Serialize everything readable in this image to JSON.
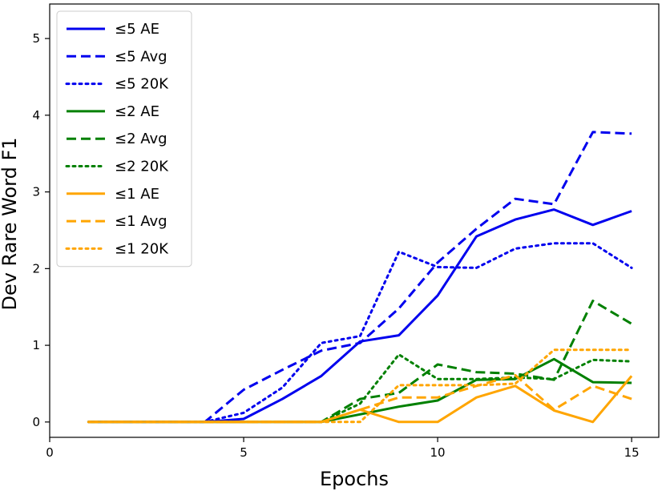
{
  "chart_data": {
    "type": "line",
    "title": "",
    "xlabel": "Epochs",
    "ylabel": "Dev Rare Word F1",
    "xlim": [
      0,
      15.7
    ],
    "ylim": [
      -0.2,
      5.45
    ],
    "xticks": [
      "0",
      "5",
      "10",
      "15"
    ],
    "xtick_values": [
      0,
      5,
      10,
      15
    ],
    "yticks": [
      "0",
      "1",
      "2",
      "3",
      "4",
      "5"
    ],
    "ytick_values": [
      0,
      1,
      2,
      3,
      4,
      5
    ],
    "grid": false,
    "legend": "top-left",
    "colors": {
      "le5": "#0000ee",
      "le2": "#008000",
      "le1": "#ffa500"
    },
    "series": [
      {
        "name": "≤5 AE",
        "color": "#0000ee",
        "style": "solid",
        "x": [
          1,
          2,
          3,
          4,
          5,
          6,
          7,
          8,
          9,
          10,
          11,
          12,
          13,
          14,
          15
        ],
        "y": [
          0,
          0,
          0,
          0,
          0.04,
          0.3,
          0.6,
          1.05,
          1.13,
          1.65,
          2.42,
          2.64,
          2.77,
          2.57,
          2.75
        ]
      },
      {
        "name": "≤5 Avg",
        "color": "#0000ee",
        "style": "dashed",
        "x": [
          1,
          2,
          3,
          4,
          5,
          6,
          7,
          8,
          9,
          10,
          11,
          12,
          13,
          14,
          15
        ],
        "y": [
          0,
          0,
          0,
          0,
          0.42,
          0.68,
          0.93,
          1.03,
          1.48,
          2.08,
          2.52,
          2.91,
          2.84,
          3.78,
          3.76
        ]
      },
      {
        "name": "≤5 20K",
        "color": "#0000ee",
        "style": "dotted",
        "x": [
          1,
          2,
          3,
          4,
          5,
          6,
          7,
          8,
          9,
          10,
          11,
          12,
          13,
          14,
          15
        ],
        "y": [
          0,
          0,
          0,
          0,
          0.12,
          0.45,
          1.03,
          1.12,
          2.22,
          2.02,
          2.01,
          2.26,
          2.33,
          2.33,
          2.01
        ]
      },
      {
        "name": "≤2 AE",
        "color": "#008000",
        "style": "solid",
        "x": [
          1,
          2,
          3,
          4,
          5,
          6,
          7,
          8,
          9,
          10,
          11,
          12,
          13,
          14,
          15
        ],
        "y": [
          0,
          0,
          0,
          0,
          0,
          0,
          0,
          0.1,
          0.2,
          0.28,
          0.55,
          0.56,
          0.82,
          0.52,
          0.51
        ]
      },
      {
        "name": "≤2 Avg",
        "color": "#008000",
        "style": "dashed",
        "x": [
          1,
          2,
          3,
          4,
          5,
          6,
          7,
          8,
          9,
          10,
          11,
          12,
          13,
          14,
          15
        ],
        "y": [
          0,
          0,
          0,
          0,
          0,
          0,
          0,
          0.3,
          0.38,
          0.75,
          0.65,
          0.63,
          0.55,
          1.58,
          1.28
        ]
      },
      {
        "name": "≤2 20K",
        "color": "#008000",
        "style": "dotted",
        "x": [
          1,
          2,
          3,
          4,
          5,
          6,
          7,
          8,
          9,
          10,
          11,
          12,
          13,
          14,
          15
        ],
        "y": [
          0,
          0,
          0,
          0,
          0,
          0,
          0,
          0.24,
          0.88,
          0.56,
          0.56,
          0.58,
          0.56,
          0.81,
          0.79
        ]
      },
      {
        "name": "≤1 AE",
        "color": "#ffa500",
        "style": "solid",
        "x": [
          1,
          2,
          3,
          4,
          5,
          6,
          7,
          8,
          9,
          10,
          11,
          12,
          13,
          14,
          15
        ],
        "y": [
          0,
          0,
          0,
          0,
          0,
          0,
          0,
          0.16,
          0,
          0,
          0.32,
          0.47,
          0.15,
          0,
          0.6
        ]
      },
      {
        "name": "≤1 Avg",
        "color": "#ffa500",
        "style": "dashed",
        "x": [
          1,
          2,
          3,
          4,
          5,
          6,
          7,
          8,
          9,
          10,
          11,
          12,
          13,
          14,
          15
        ],
        "y": [
          0,
          0,
          0,
          0,
          0,
          0,
          0,
          0.16,
          0.32,
          0.32,
          0.47,
          0.61,
          0.16,
          0.47,
          0.3
        ]
      },
      {
        "name": "≤1 20K",
        "color": "#ffa500",
        "style": "dotted",
        "x": [
          1,
          2,
          3,
          4,
          5,
          6,
          7,
          8,
          9,
          10,
          11,
          12,
          13,
          14,
          15
        ],
        "y": [
          0,
          0,
          0,
          0,
          0,
          0,
          0,
          0,
          0.48,
          0.48,
          0.48,
          0.5,
          0.94,
          0.94,
          0.94
        ]
      }
    ]
  }
}
